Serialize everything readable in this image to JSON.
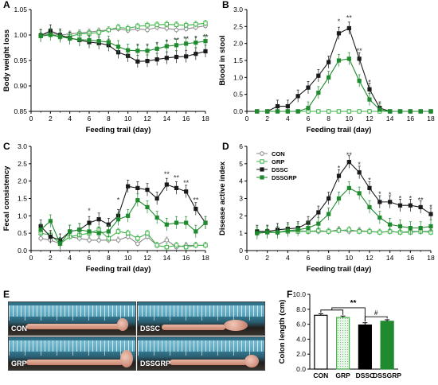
{
  "panel_letters": [
    "A",
    "B",
    "C",
    "D",
    "E",
    "F"
  ],
  "colors": {
    "CON": "#8a8a8a",
    "GRP": "#3fb54a",
    "DSSC": "#1a1a1a",
    "DSSGRP": "#1f8a2e"
  },
  "legend": [
    {
      "name": "CON",
      "marker": "open-circle"
    },
    {
      "name": "GRP",
      "marker": "open-square"
    },
    {
      "name": "DSSC",
      "marker": "filled-square"
    },
    {
      "name": "DSSGRP",
      "marker": "filled-square"
    }
  ],
  "photo_labels": [
    "CON",
    "DSSC",
    "GRP",
    "DSSGRP"
  ],
  "chart_data": [
    {
      "id": "A",
      "type": "line",
      "xlabel": "Feeding trail (day)",
      "ylabel": "Body weight loss",
      "xlim": [
        0,
        18
      ],
      "ylim": [
        0.85,
        1.05
      ],
      "xticks": [
        "0",
        "2",
        "4",
        "6",
        "8",
        "10",
        "12",
        "14",
        "16",
        "18"
      ],
      "yticks": [
        "0.85",
        "0.90",
        "0.95",
        "1.00",
        "1.05"
      ],
      "x": [
        1,
        2,
        3,
        4,
        5,
        6,
        7,
        8,
        9,
        10,
        11,
        12,
        13,
        14,
        15,
        16,
        17,
        18
      ],
      "series": [
        {
          "name": "CON",
          "values": [
            1.0,
            1.003,
            1.0,
            1.002,
            1.004,
            1.006,
            1.008,
            1.01,
            1.012,
            1.009,
            1.012,
            1.01,
            1.015,
            1.013,
            1.01,
            1.012,
            1.015,
            1.018
          ]
        },
        {
          "name": "GRP",
          "values": [
            0.998,
            1.0,
            0.996,
            0.997,
            1.002,
            1.003,
            1.005,
            1.01,
            1.015,
            1.013,
            1.017,
            1.019,
            1.02,
            1.021,
            1.02,
            1.019,
            1.021,
            1.023
          ]
        },
        {
          "name": "DSSC",
          "values": [
            0.999,
            1.008,
            1.0,
            0.994,
            0.99,
            0.986,
            0.984,
            0.98,
            0.966,
            0.959,
            0.948,
            0.949,
            0.952,
            0.955,
            0.957,
            0.958,
            0.963,
            0.968
          ]
        },
        {
          "name": "DSSGRP",
          "values": [
            0.998,
            1.001,
            0.997,
            0.993,
            0.991,
            0.99,
            0.988,
            0.986,
            0.977,
            0.97,
            0.969,
            0.969,
            0.973,
            0.978,
            0.98,
            0.983,
            0.985,
            0.988
          ]
        }
      ],
      "annotations": [
        {
          "x": 11,
          "y": 0.978,
          "text": "*"
        },
        {
          "x": 12,
          "y": 0.978,
          "text": "*"
        },
        {
          "x": 13,
          "y": 0.981,
          "text": "*"
        },
        {
          "x": 14,
          "y": 0.986,
          "text": "*"
        },
        {
          "x": 15,
          "y": 0.99,
          "text": "**"
        },
        {
          "x": 16,
          "y": 0.992,
          "text": "**"
        },
        {
          "x": 17,
          "y": 0.993,
          "text": "*"
        },
        {
          "x": 18,
          "y": 0.996,
          "text": "**"
        }
      ]
    },
    {
      "id": "B",
      "type": "line",
      "xlabel": "Feeding trail (day)",
      "ylabel": "Blood in stool",
      "xlim": [
        0,
        18
      ],
      "ylim": [
        0,
        3.0
      ],
      "xticks": [
        "0",
        "2",
        "4",
        "6",
        "8",
        "10",
        "12",
        "14",
        "16",
        "18"
      ],
      "yticks": [
        "0.0",
        "0.5",
        "1.0",
        "1.5",
        "2.0",
        "2.5",
        "3.0"
      ],
      "x": [
        1,
        2,
        3,
        4,
        5,
        6,
        7,
        8,
        9,
        10,
        11,
        12,
        13,
        14,
        15,
        16,
        17,
        18
      ],
      "series": [
        {
          "name": "CON",
          "values": [
            0,
            0,
            0,
            0,
            0,
            0,
            0,
            0,
            0,
            0,
            0,
            0,
            0,
            0,
            0,
            0,
            0,
            0
          ]
        },
        {
          "name": "GRP",
          "values": [
            0,
            0,
            0,
            0,
            0,
            0,
            0,
            0,
            0,
            0,
            0,
            0,
            0,
            0,
            0,
            0,
            0,
            0
          ]
        },
        {
          "name": "DSSC",
          "values": [
            0,
            0,
            0.15,
            0.15,
            0.45,
            0.7,
            1.05,
            1.45,
            2.3,
            2.45,
            1.55,
            0.65,
            0.1,
            0,
            0,
            0,
            0,
            0
          ]
        },
        {
          "name": "DSSGRP",
          "values": [
            0,
            0,
            0,
            0,
            0,
            0.1,
            0.55,
            1.0,
            1.5,
            1.55,
            0.9,
            0.35,
            0.05,
            0,
            0,
            0,
            0,
            0
          ]
        }
      ],
      "annotations": [
        {
          "x": 9,
          "y": 2.65,
          "text": "*"
        },
        {
          "x": 10,
          "y": 2.75,
          "text": "**"
        },
        {
          "x": 11,
          "y": 1.78,
          "text": "**"
        },
        {
          "x": 12,
          "y": 0.85,
          "text": "*"
        }
      ]
    },
    {
      "id": "C",
      "type": "line",
      "xlabel": "Feeding trail (day)",
      "ylabel": "Fecal consistency",
      "xlim": [
        0,
        18
      ],
      "ylim": [
        0,
        3.0
      ],
      "xticks": [
        "0",
        "2",
        "4",
        "6",
        "8",
        "10",
        "12",
        "14",
        "16",
        "18"
      ],
      "yticks": [
        "0.0",
        "0.5",
        "1.0",
        "1.5",
        "2.0",
        "2.5",
        "3.0"
      ],
      "x": [
        1,
        2,
        3,
        4,
        5,
        6,
        7,
        8,
        9,
        10,
        11,
        12,
        13,
        14,
        15,
        16,
        17,
        18
      ],
      "series": [
        {
          "name": "CON",
          "values": [
            0.35,
            0.3,
            0.2,
            0.4,
            0.35,
            0.3,
            0.3,
            0.3,
            0.3,
            0.4,
            0.2,
            0.4,
            0.15,
            0.3,
            0.1,
            0.15,
            0.15,
            0.15
          ]
        },
        {
          "name": "GRP",
          "values": [
            0.5,
            0.45,
            0.2,
            0.4,
            0.45,
            0.5,
            0.6,
            0.35,
            0.55,
            0.5,
            0.35,
            0.5,
            0.15,
            0.1,
            0.15,
            0.1,
            0.15,
            0.15
          ]
        },
        {
          "name": "DSSC",
          "values": [
            0.7,
            0.4,
            0.3,
            0.55,
            0.6,
            0.8,
            0.9,
            0.75,
            1.0,
            1.85,
            1.8,
            1.75,
            1.5,
            1.9,
            1.8,
            1.7,
            1.2,
            0.8
          ]
        },
        {
          "name": "DSSGRP",
          "values": [
            0.6,
            0.85,
            0.2,
            0.55,
            0.6,
            0.55,
            0.5,
            0.55,
            0.9,
            1.0,
            1.45,
            1.25,
            0.95,
            0.75,
            0.8,
            0.8,
            0.55,
            0.8
          ]
        }
      ],
      "annotations": [
        {
          "x": 6,
          "y": 1.15,
          "text": "*"
        },
        {
          "x": 9,
          "y": 1.45,
          "text": "*"
        },
        {
          "x": 14,
          "y": 2.2,
          "text": "**"
        },
        {
          "x": 15,
          "y": 2.1,
          "text": "**"
        },
        {
          "x": 16,
          "y": 1.95,
          "text": "**"
        },
        {
          "x": 17,
          "y": 1.45,
          "text": "**"
        }
      ]
    },
    {
      "id": "D",
      "type": "line",
      "xlabel": "Feeding trail (day)",
      "ylabel": "Disease active index",
      "xlim": [
        0,
        18
      ],
      "ylim": [
        0,
        6
      ],
      "xticks": [
        "0",
        "2",
        "4",
        "6",
        "8",
        "10",
        "12",
        "14",
        "16",
        "18"
      ],
      "yticks": [
        "0",
        "1",
        "2",
        "3",
        "4",
        "5",
        "6"
      ],
      "x": [
        1,
        2,
        3,
        4,
        5,
        6,
        7,
        8,
        9,
        10,
        11,
        12,
        13,
        14,
        15,
        16,
        17,
        18
      ],
      "series": [
        {
          "name": "CON",
          "values": [
            1.0,
            1.05,
            1.05,
            1.1,
            1.15,
            1.1,
            1.1,
            1.1,
            1.2,
            1.1,
            1.15,
            1.1,
            1.05,
            1.1,
            1.05,
            1.1,
            1.1,
            1.1
          ]
        },
        {
          "name": "GRP",
          "values": [
            1.05,
            1.1,
            1.05,
            1.1,
            1.1,
            1.1,
            1.15,
            1.1,
            1.15,
            1.2,
            1.1,
            1.1,
            1.05,
            1.1,
            1.05,
            1.05,
            1.1,
            1.05
          ]
        },
        {
          "name": "DSSC",
          "values": [
            1.1,
            1.1,
            1.2,
            1.25,
            1.3,
            1.6,
            2.2,
            3.0,
            4.3,
            5.1,
            4.5,
            3.6,
            2.8,
            2.8,
            2.6,
            2.6,
            2.5,
            2.1
          ]
        },
        {
          "name": "DSSGRP",
          "values": [
            1.0,
            1.05,
            1.05,
            1.15,
            1.2,
            1.3,
            1.55,
            2.1,
            3.0,
            3.6,
            3.3,
            2.5,
            1.9,
            1.5,
            1.4,
            1.3,
            1.3,
            1.4
          ]
        }
      ],
      "annotations": [
        {
          "x": 9,
          "y": 4.75,
          "text": "*"
        },
        {
          "x": 10,
          "y": 5.5,
          "text": "**"
        },
        {
          "x": 11,
          "y": 4.95,
          "text": "*"
        },
        {
          "x": 12,
          "y": 4.05,
          "text": "*"
        },
        {
          "x": 13,
          "y": 3.25,
          "text": "*"
        },
        {
          "x": 14,
          "y": 3.2,
          "text": "*"
        },
        {
          "x": 15,
          "y": 3.0,
          "text": "*"
        },
        {
          "x": 16,
          "y": 3.0,
          "text": "*"
        },
        {
          "x": 17,
          "y": 2.9,
          "text": "**"
        },
        {
          "x": 18,
          "y": 2.5,
          "text": "*"
        }
      ]
    },
    {
      "id": "F",
      "type": "bar",
      "ylabel": "Colon length (cm)",
      "ylim": [
        0,
        10
      ],
      "yticks": [
        "0.0",
        "2.0",
        "4.0",
        "6.0",
        "8.0",
        "10.0"
      ],
      "categories": [
        "CON",
        "GRP",
        "DSSC",
        "DSSGRP"
      ],
      "values": [
        7.2,
        6.9,
        5.9,
        6.4
      ],
      "errors": [
        0.2,
        0.2,
        0.3,
        0.2
      ],
      "fills": [
        "white",
        "dotted",
        "black",
        "green"
      ],
      "annotations": [
        {
          "text": "**",
          "between": [
            "CON-GRP",
            "DSSC"
          ]
        },
        {
          "text": "#",
          "between": [
            "DSSC",
            "DSSGRP"
          ]
        }
      ]
    }
  ]
}
